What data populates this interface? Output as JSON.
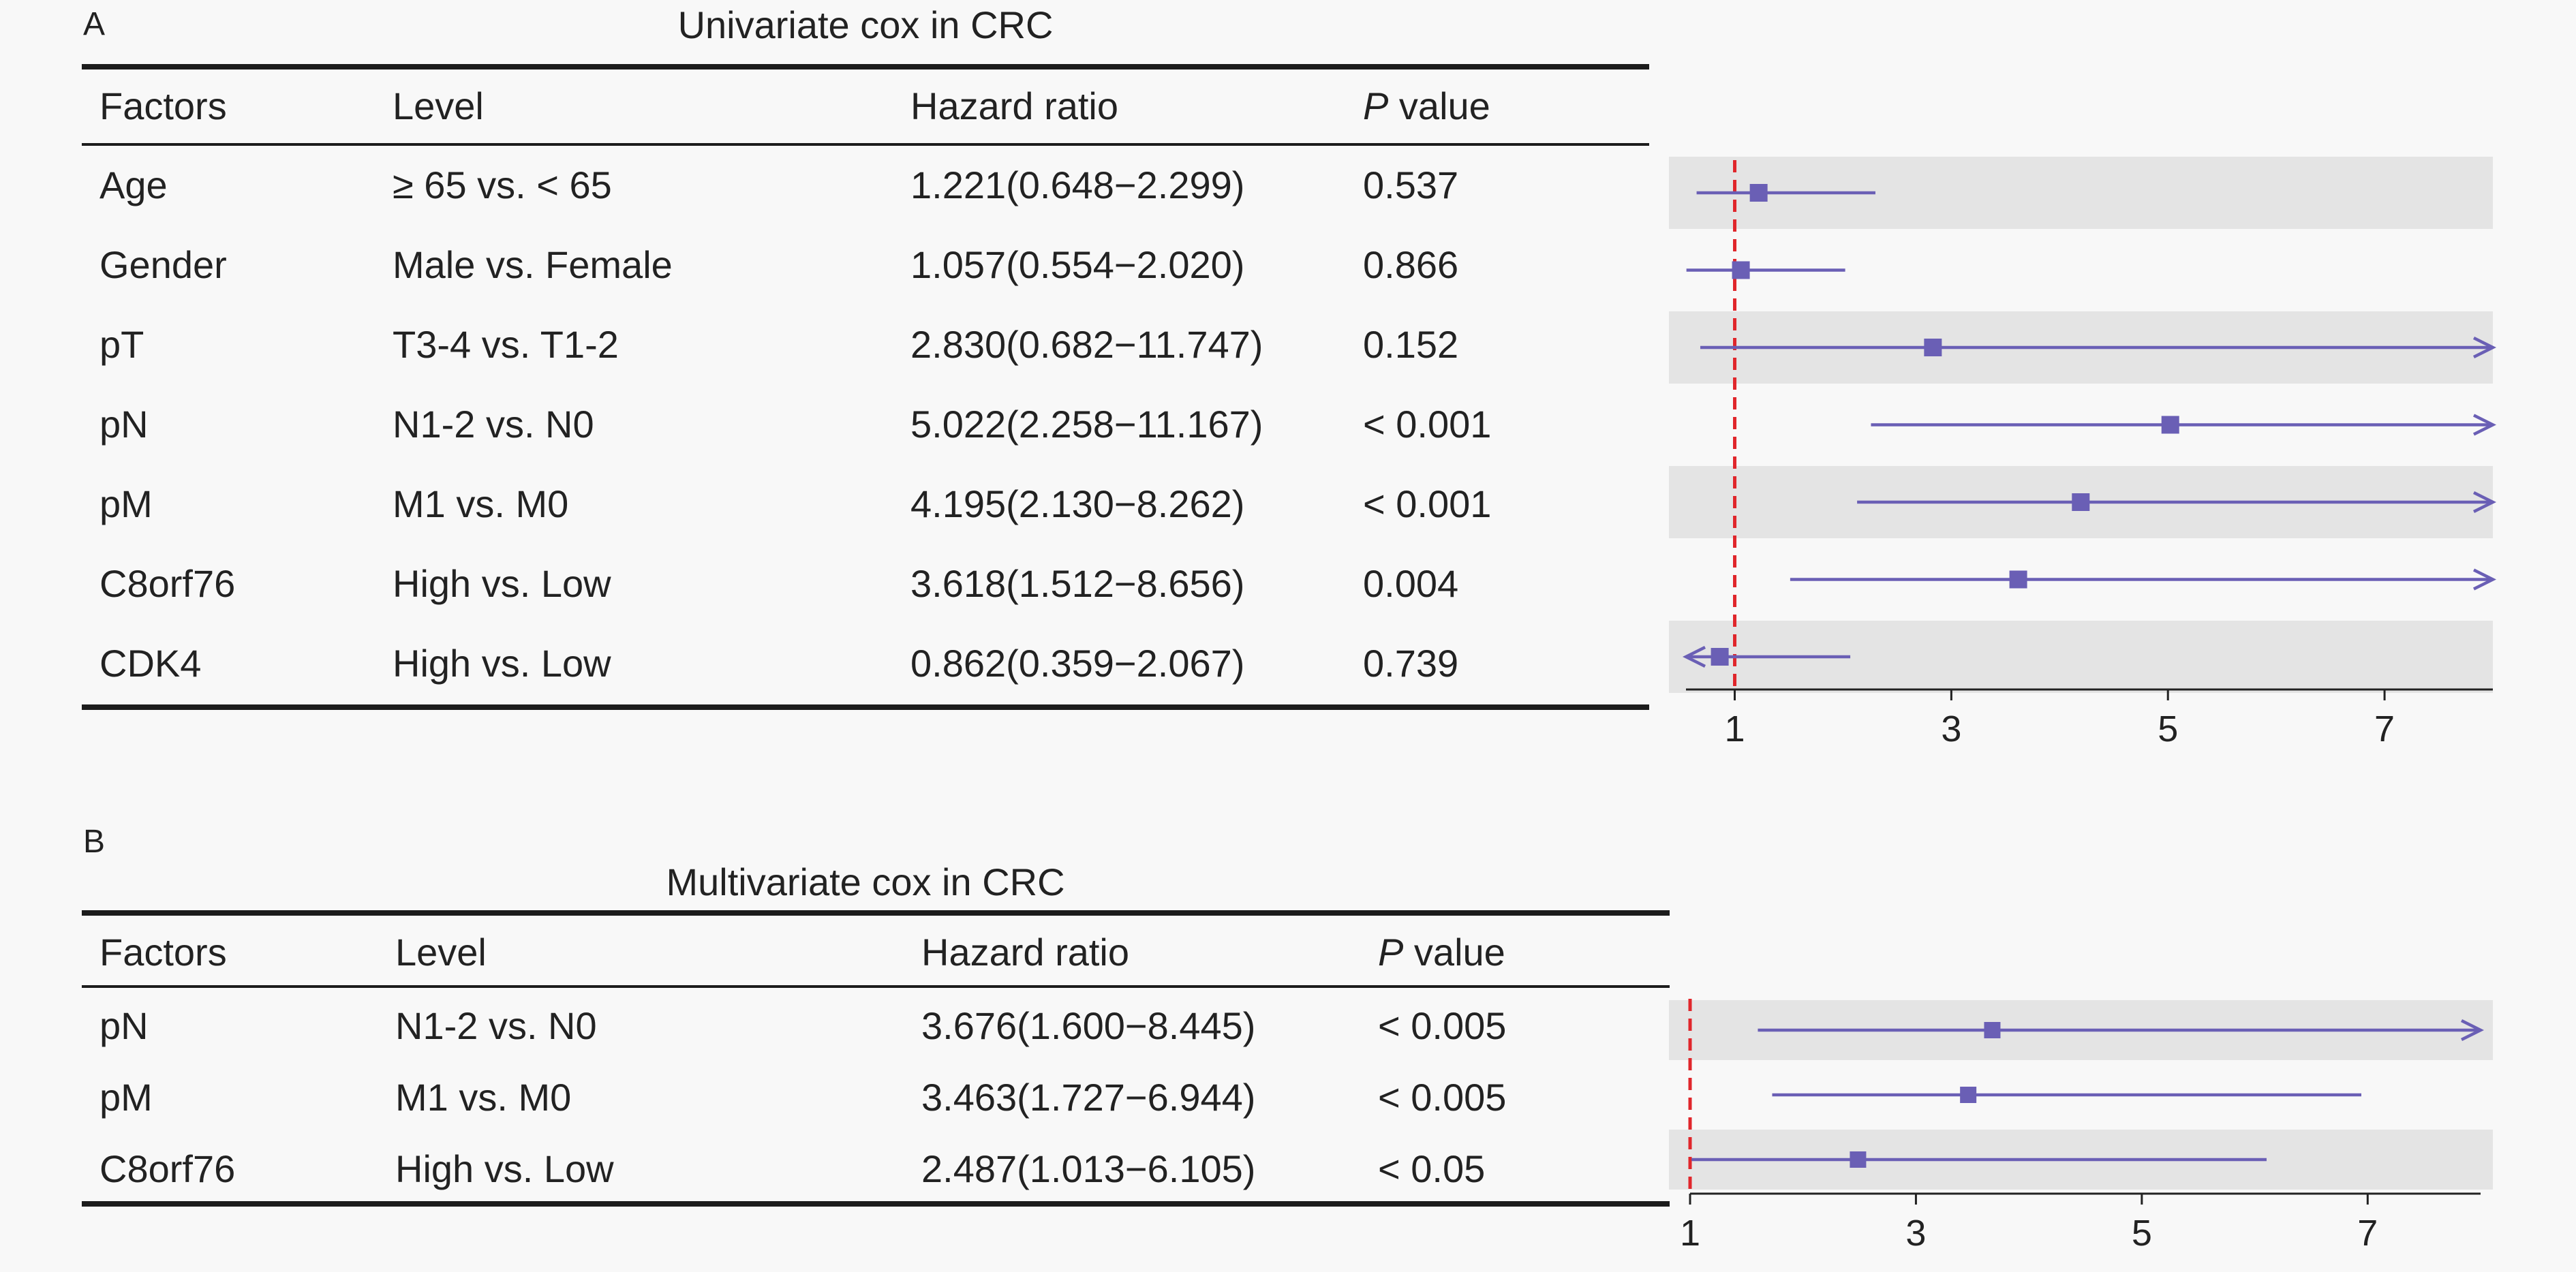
{
  "colors": {
    "background": "#f8f8f8",
    "band": "#e4e4e4",
    "ci_line": "#6a5fb5",
    "marker": "#6a5fb5",
    "reference_line": "#e0262b",
    "rule": "#1c1c1c"
  },
  "chart_data": [
    {
      "type": "forest",
      "panel_label": "A",
      "title": "Univariate cox in CRC",
      "columns": [
        "Factors",
        "Level",
        "Hazard ratio",
        "P value"
      ],
      "p_header": {
        "italic_part": "P",
        "rest": " value"
      },
      "reference_value": 1,
      "x_ticks": [
        1,
        3,
        5,
        7
      ],
      "xlim": [
        0.55,
        8.0
      ],
      "rows": [
        {
          "factor": "Age",
          "level": "≥ 65 vs. < 65",
          "hr_text": "1.221(0.648−2.299)",
          "p": "0.537",
          "hr": 1.221,
          "lo": 0.648,
          "hi": 2.299,
          "band": true
        },
        {
          "factor": "Gender",
          "level": "Male vs. Female",
          "hr_text": "1.057(0.554−2.020)",
          "p": "0.866",
          "hr": 1.057,
          "lo": 0.554,
          "hi": 2.02,
          "band": false
        },
        {
          "factor": "pT",
          "level": "T3-4 vs. T1-2",
          "hr_text": "2.830(0.682−11.747)",
          "p": "0.152",
          "hr": 2.83,
          "lo": 0.682,
          "hi": 11.747,
          "band": true
        },
        {
          "factor": "pN",
          "level": "N1-2 vs. N0",
          "hr_text": "5.022(2.258−11.167)",
          "p": "< 0.001",
          "hr": 5.022,
          "lo": 2.258,
          "hi": 11.167,
          "band": false
        },
        {
          "factor": "pM",
          "level": "M1 vs. M0",
          "hr_text": "4.195(2.130−8.262)",
          "p": "< 0.001",
          "hr": 4.195,
          "lo": 2.13,
          "hi": 8.262,
          "band": true
        },
        {
          "factor": "C8orf76",
          "level": "High vs. Low",
          "hr_text": "3.618(1.512−8.656)",
          "p": "0.004",
          "hr": 3.618,
          "lo": 1.512,
          "hi": 8.656,
          "band": false
        },
        {
          "factor": "CDK4",
          "level": "High vs. Low",
          "hr_text": "0.862(0.359−2.067)",
          "p": "0.739",
          "hr": 0.862,
          "lo": 0.359,
          "hi": 2.067,
          "band": true
        }
      ]
    },
    {
      "type": "forest",
      "panel_label": "B",
      "title": "Multivariate cox in CRC",
      "columns": [
        "Factors",
        "Level",
        "Hazard ratio",
        "P value"
      ],
      "p_header": {
        "italic_part": "P",
        "rest": " value"
      },
      "reference_value": 1,
      "x_ticks": [
        1,
        3,
        5,
        7
      ],
      "xlim": [
        1.0,
        8.0
      ],
      "rows": [
        {
          "factor": "pN",
          "level": "N1-2 vs. N0",
          "hr_text": "3.676(1.600−8.445)",
          "p": "< 0.005",
          "hr": 3.676,
          "lo": 1.6,
          "hi": 8.445,
          "band": true
        },
        {
          "factor": "pM",
          "level": "M1 vs. M0",
          "hr_text": "3.463(1.727−6.944)",
          "p": "< 0.005",
          "hr": 3.463,
          "lo": 1.727,
          "hi": 6.944,
          "band": false
        },
        {
          "factor": "C8orf76",
          "level": "High vs. Low",
          "hr_text": "2.487(1.013−6.105)",
          "p": "< 0.05",
          "hr": 2.487,
          "lo": 1.013,
          "hi": 6.105,
          "band": true
        }
      ]
    }
  ]
}
